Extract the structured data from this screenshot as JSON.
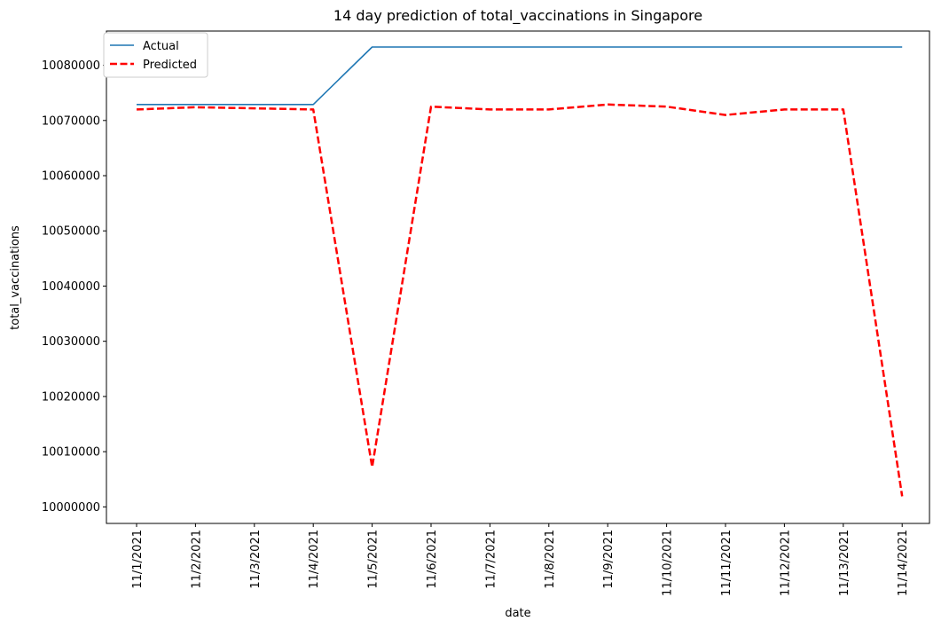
{
  "chart_data": {
    "type": "line",
    "title": "14 day prediction of total_vaccinations in Singapore",
    "xlabel": "date",
    "ylabel": "total_vaccinations",
    "categories": [
      "11/1/2021",
      "11/2/2021",
      "11/3/2021",
      "11/4/2021",
      "11/5/2021",
      "11/6/2021",
      "11/7/2021",
      "11/8/2021",
      "11/9/2021",
      "11/10/2021",
      "11/11/2021",
      "11/12/2021",
      "11/13/2021",
      "11/14/2021"
    ],
    "ylim": [
      9997000,
      10086200
    ],
    "yticks": [
      10000000,
      10010000,
      10020000,
      10030000,
      10040000,
      10050000,
      10060000,
      10070000,
      10080000
    ],
    "grid": false,
    "legend_position": "top-left",
    "series": [
      {
        "name": "Actual",
        "color": "#1f77b4",
        "style": "solid",
        "values": [
          10072900,
          10072900,
          10072900,
          10072900,
          10083300,
          10083300,
          10083300,
          10083300,
          10083300,
          10083300,
          10083300,
          10083300,
          10083300,
          10083300
        ]
      },
      {
        "name": "Predicted",
        "color": "#ff0000",
        "style": "dashed",
        "values": [
          10072000,
          10072400,
          10072200,
          10072000,
          10007200,
          10072500,
          10072000,
          10072000,
          10072900,
          10072500,
          10071000,
          10072000,
          10072000,
          10001900
        ]
      }
    ]
  }
}
